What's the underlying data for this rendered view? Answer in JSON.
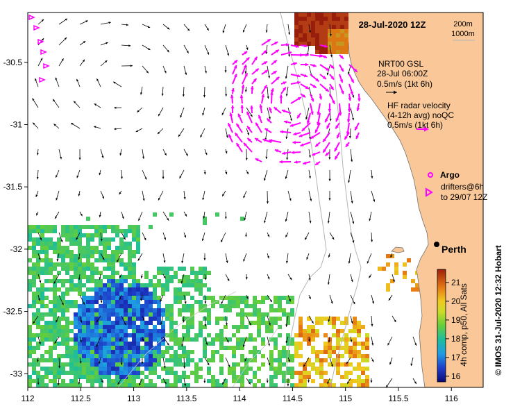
{
  "title": "28-Jul-2020 12Z",
  "depth_contours": [
    "200m",
    "1000m"
  ],
  "legend": {
    "nrt_line1": "NRT00 GSL",
    "nrt_line2": "28-Jul 06:00Z",
    "nrt_scale": "0.5m/s (1kt 6h)",
    "hf_line1": "HF radar velocity",
    "hf_line2": "(4-12h avg) noQC",
    "hf_scale": "0.5m/s (1kt 6h)",
    "argo": "Argo",
    "drifters_line1": "drifters@6h",
    "drifters_line2": "to 29/07 12Z"
  },
  "city": "Perth",
  "colorbar": {
    "label": "4h comp, p50, All Sats",
    "ticks": [
      "16",
      "17",
      "18",
      "19",
      "20",
      "21"
    ],
    "range": [
      15.7,
      21.7
    ]
  },
  "credit": "© IMOS 31-Jul-2020 12:32 Hobart",
  "axes": {
    "lon_ticks": [
      "112",
      "112.5",
      "113",
      "113.5",
      "114",
      "114.5",
      "115",
      "115.5",
      "116"
    ],
    "lat_ticks": [
      "-30.5",
      "-31",
      "-31.5",
      "-32",
      "-32.5",
      "-33"
    ],
    "lon_range": [
      112.0,
      116.3
    ],
    "lat_range": [
      -30.1,
      -33.11
    ]
  },
  "colors": {
    "land": "#fac898",
    "hf_arrow": "#ff00ff",
    "contour": "#b4b4b4",
    "coast": "#808080"
  }
}
